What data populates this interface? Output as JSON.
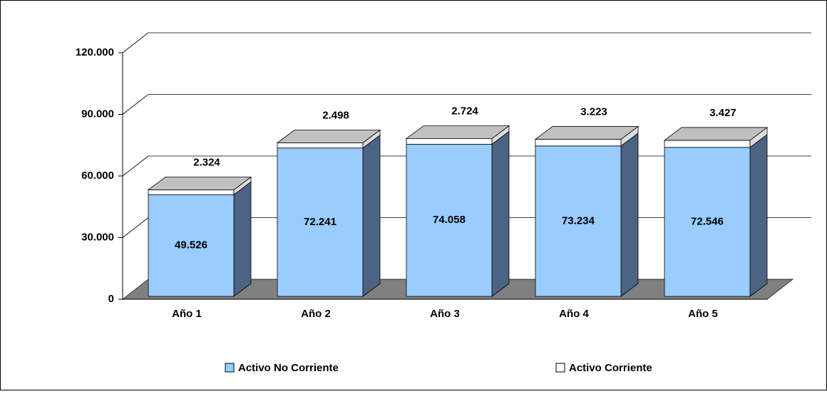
{
  "chart_data": {
    "type": "bar3d_stacked",
    "categories": [
      "Año 1",
      "Año 2",
      "Año 3",
      "Año 4",
      "Año 5"
    ],
    "series": [
      {
        "name": "Activo No Corriente",
        "color": "#99ccff",
        "values": [
          49526,
          72241,
          74058,
          73234,
          72546
        ],
        "value_labels": [
          "49.526",
          "72.241",
          "74.058",
          "73.234",
          "72.546"
        ]
      },
      {
        "name": "Activo Corriente",
        "color": "#ffffff",
        "values": [
          2324,
          2498,
          2724,
          3223,
          3427
        ],
        "value_labels": [
          "2.324",
          "2.498",
          "2.724",
          "3.223",
          "3.427"
        ]
      }
    ],
    "ylim": [
      0,
      120000
    ],
    "yticks": [
      {
        "value": 0,
        "label": "0"
      },
      {
        "value": 30000,
        "label": "30.000"
      },
      {
        "value": 60000,
        "label": "60.000"
      },
      {
        "value": 90000,
        "label": "90.000"
      },
      {
        "value": 120000,
        "label": "120.000"
      }
    ],
    "grid": true,
    "legend": "bottom"
  }
}
